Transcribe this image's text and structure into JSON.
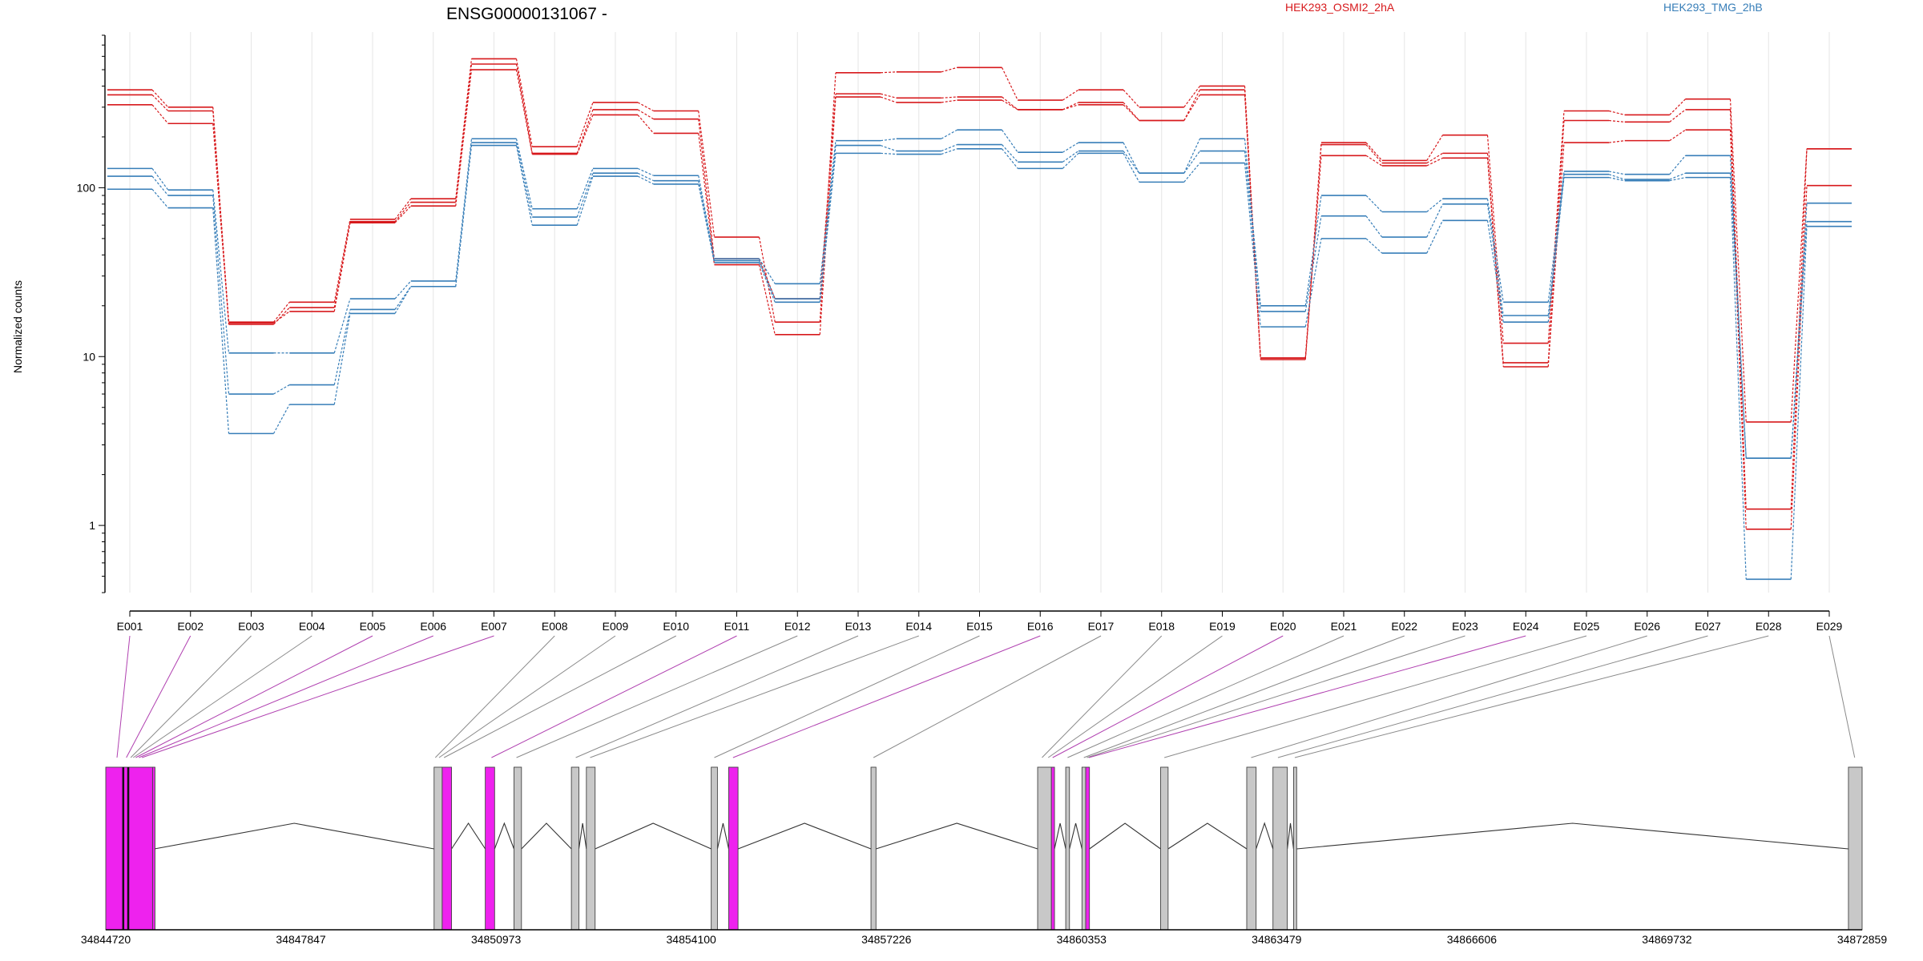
{
  "chart_data": {
    "type": "line",
    "title": "ENSG00000131067 -",
    "ylabel": "Normalized counts",
    "yscale": "log",
    "ylim": [
      0.4,
      800
    ],
    "yticks": [
      {
        "value": 1,
        "label": "1"
      },
      {
        "value": 10,
        "label": "10"
      },
      {
        "value": 100,
        "label": "100"
      }
    ],
    "grid": "vertical",
    "legend_placement": "top-right",
    "legend": [
      {
        "label": "HEK293_OSMI2_2hA",
        "color": "#d7191c"
      },
      {
        "label": "HEK293_TMG_2hB",
        "color": "#377eb8"
      }
    ],
    "categories": [
      "E001",
      "E002",
      "E003",
      "E004",
      "E005",
      "E006",
      "E007",
      "E008",
      "E009",
      "E010",
      "E011",
      "E012",
      "E013",
      "E014",
      "E015",
      "E016",
      "E017",
      "E018",
      "E019",
      "E020",
      "E021",
      "E022",
      "E023",
      "E024",
      "E025",
      "E026",
      "E027",
      "E028",
      "E029"
    ],
    "series": [
      {
        "group": "HEK293_OSMI2_2hA",
        "color": "#d7191c",
        "values": [
          380,
          300,
          16,
          21,
          65,
          86,
          580,
          175,
          320,
          285,
          51,
          16,
          480,
          485,
          515,
          330,
          380,
          300,
          400,
          9.8,
          185,
          145,
          205,
          12,
          285,
          270,
          335,
          4.1,
          170
        ]
      },
      {
        "group": "HEK293_OSMI2_2hA",
        "color": "#d7191c",
        "values": [
          355,
          285,
          15.5,
          19.5,
          63,
          82,
          540,
          160,
          290,
          255,
          38,
          22,
          360,
          340,
          345,
          290,
          320,
          250,
          380,
          9.8,
          180,
          140,
          160,
          9.2,
          250,
          245,
          290,
          1.25,
          170
        ]
      },
      {
        "group": "HEK293_OSMI2_2hA",
        "color": "#d7191c",
        "values": [
          310,
          240,
          15.8,
          18.5,
          62,
          78,
          500,
          158,
          270,
          210,
          35,
          13.5,
          345,
          320,
          330,
          290,
          310,
          250,
          355,
          9.6,
          155,
          135,
          150,
          8.7,
          185,
          190,
          220,
          0.95,
          103
        ]
      },
      {
        "group": "HEK293_TMG_2hB",
        "color": "#377eb8",
        "values": [
          130,
          97,
          10.5,
          10.5,
          22,
          28,
          195,
          75,
          130,
          118,
          38,
          27,
          190,
          195,
          220,
          162,
          185,
          122,
          195,
          20,
          90,
          72,
          86,
          21,
          125,
          120,
          155,
          2.5,
          81
        ]
      },
      {
        "group": "HEK293_TMG_2hB",
        "color": "#377eb8",
        "values": [
          117,
          90,
          6,
          6.8,
          19,
          26,
          185,
          67,
          122,
          110,
          37,
          22,
          178,
          165,
          180,
          142,
          165,
          122,
          165,
          18.5,
          68,
          51,
          80,
          17.5,
          120,
          112,
          122,
          2.5,
          63
        ]
      },
      {
        "group": "HEK293_TMG_2hB",
        "color": "#377eb8",
        "values": [
          98,
          76,
          3.5,
          5.2,
          18,
          26,
          178,
          60,
          117,
          105,
          36,
          21,
          160,
          158,
          170,
          130,
          160,
          108,
          140,
          15,
          50,
          41,
          64,
          16,
          115,
          110,
          115,
          0.48,
          59
        ]
      }
    ],
    "genomic_axis": {
      "tick_labels": [
        "34844720",
        "34847847",
        "34850973",
        "34854100",
        "34857226",
        "34860353",
        "34863479",
        "34866606",
        "34869732",
        "34872859"
      ],
      "start": 34844720,
      "end": 34872859
    },
    "exon_blocks": [
      {
        "start": 34844720,
        "end": 34845000,
        "highlight": true
      },
      {
        "start": 34845000,
        "end": 34845470,
        "highlight": true
      },
      {
        "start": 34845470,
        "end": 34845500,
        "highlight": true
      },
      {
        "start": 34849980,
        "end": 34850110,
        "highlight": false
      },
      {
        "start": 34850110,
        "end": 34850260,
        "highlight": true
      },
      {
        "start": 34850800,
        "end": 34850950,
        "highlight": true
      },
      {
        "start": 34851260,
        "end": 34851380,
        "highlight": false
      },
      {
        "start": 34852180,
        "end": 34852300,
        "highlight": false
      },
      {
        "start": 34852420,
        "end": 34852560,
        "highlight": false
      },
      {
        "start": 34854420,
        "end": 34854520,
        "highlight": false
      },
      {
        "start": 34854700,
        "end": 34854850,
        "highlight": true
      },
      {
        "start": 34856980,
        "end": 34857060,
        "highlight": false
      },
      {
        "start": 34859650,
        "end": 34859870,
        "highlight": false
      },
      {
        "start": 34859870,
        "end": 34859920,
        "highlight": true
      },
      {
        "start": 34860100,
        "end": 34860160,
        "highlight": false
      },
      {
        "start": 34860360,
        "end": 34860420,
        "highlight": false
      },
      {
        "start": 34860420,
        "end": 34860480,
        "highlight": true
      },
      {
        "start": 34861620,
        "end": 34861740,
        "highlight": false
      },
      {
        "start": 34863000,
        "end": 34863150,
        "highlight": false
      },
      {
        "start": 34863420,
        "end": 34863650,
        "highlight": false
      },
      {
        "start": 34863750,
        "end": 34863800,
        "highlight": false
      },
      {
        "start": 34872640,
        "end": 34872859,
        "highlight": false
      }
    ],
    "exon_links": [
      {
        "exon": "E001",
        "pos": 34844900,
        "highlight": true
      },
      {
        "exon": "E002",
        "pos": 34845050,
        "highlight": true
      },
      {
        "exon": "E003",
        "pos": 34845120,
        "highlight": false
      },
      {
        "exon": "E004",
        "pos": 34845160,
        "highlight": false
      },
      {
        "exon": "E005",
        "pos": 34845200,
        "highlight": true
      },
      {
        "exon": "E006",
        "pos": 34845250,
        "highlight": true
      },
      {
        "exon": "E007",
        "pos": 34845300,
        "highlight": true
      },
      {
        "exon": "E008",
        "pos": 34850000,
        "highlight": false
      },
      {
        "exon": "E009",
        "pos": 34850060,
        "highlight": false
      },
      {
        "exon": "E010",
        "pos": 34850140,
        "highlight": false
      },
      {
        "exon": "E011",
        "pos": 34850900,
        "highlight": true
      },
      {
        "exon": "E012",
        "pos": 34851300,
        "highlight": false
      },
      {
        "exon": "E013",
        "pos": 34852250,
        "highlight": false
      },
      {
        "exon": "E014",
        "pos": 34852480,
        "highlight": false
      },
      {
        "exon": "E015",
        "pos": 34854470,
        "highlight": false
      },
      {
        "exon": "E016",
        "pos": 34854770,
        "highlight": true
      },
      {
        "exon": "E017",
        "pos": 34857020,
        "highlight": false
      },
      {
        "exon": "E018",
        "pos": 34859720,
        "highlight": false
      },
      {
        "exon": "E019",
        "pos": 34859820,
        "highlight": false
      },
      {
        "exon": "E020",
        "pos": 34859890,
        "highlight": true
      },
      {
        "exon": "E021",
        "pos": 34860130,
        "highlight": false
      },
      {
        "exon": "E022",
        "pos": 34860390,
        "highlight": false
      },
      {
        "exon": "E023",
        "pos": 34860440,
        "highlight": false
      },
      {
        "exon": "E024",
        "pos": 34860470,
        "highlight": true
      },
      {
        "exon": "E025",
        "pos": 34861680,
        "highlight": false
      },
      {
        "exon": "E026",
        "pos": 34863070,
        "highlight": false
      },
      {
        "exon": "E027",
        "pos": 34863500,
        "highlight": false
      },
      {
        "exon": "E028",
        "pos": 34863770,
        "highlight": false
      },
      {
        "exon": "E029",
        "pos": 34872740,
        "highlight": false
      }
    ],
    "colors": {
      "highlight_exon": "#ee22ee",
      "normal_exon": "#c8c8c8",
      "highlight_link": "#b040b0",
      "normal_link": "#8a8a8a",
      "grid": "#e6e6e6"
    }
  }
}
